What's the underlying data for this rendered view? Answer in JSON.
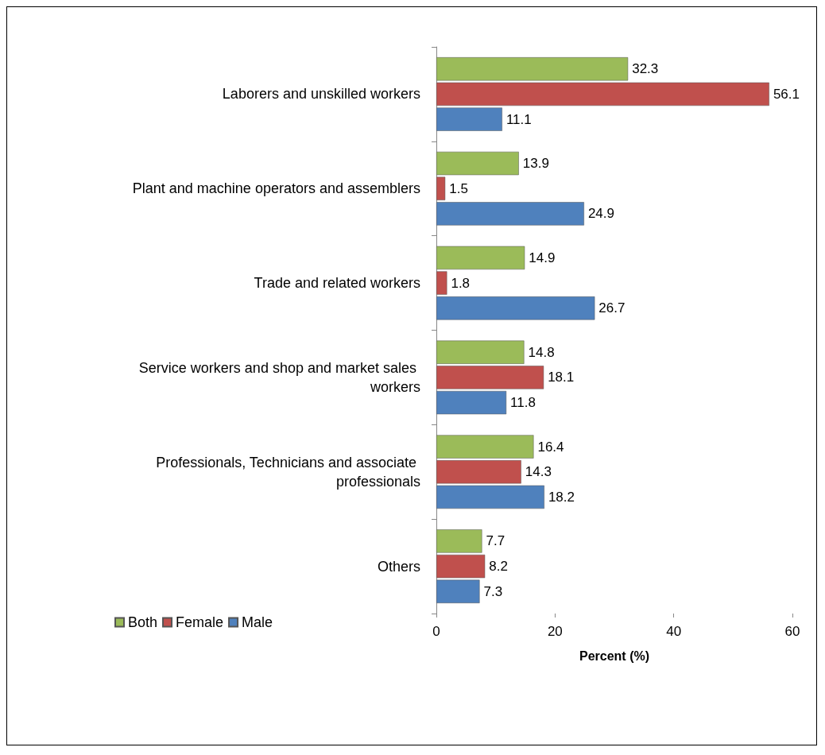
{
  "chart_data": {
    "type": "bar",
    "orientation": "horizontal",
    "xlabel": "Percent (%)",
    "categories": [
      "Laborers and unskilled workers",
      "Plant and machine operators and assemblers",
      "Trade and related workers",
      "Service workers and shop and market sales workers",
      "Professionals, Technicians and associate professionals",
      "Others"
    ],
    "series": [
      {
        "name": "Both",
        "color": "#9bbb59",
        "values": [
          32.3,
          13.9,
          14.9,
          14.8,
          16.4,
          7.7
        ]
      },
      {
        "name": "Female",
        "color": "#c0504d",
        "values": [
          56.1,
          1.5,
          1.8,
          18.1,
          14.3,
          8.2
        ]
      },
      {
        "name": "Male",
        "color": "#4f81bd",
        "values": [
          11.1,
          24.9,
          26.7,
          11.8,
          18.2,
          7.3
        ]
      }
    ],
    "xlim": [
      0,
      60
    ],
    "xticks": [
      0,
      20,
      40,
      60
    ],
    "grid": false,
    "legend": "bottom left",
    "data_labels": true
  }
}
